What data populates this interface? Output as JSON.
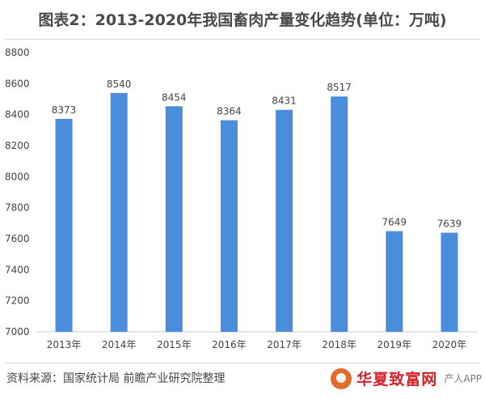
{
  "header": {
    "title": "图表2：2013-2020年我国畜肉产量变化趋势(单位：万吨)"
  },
  "footer": {
    "source": "资料来源：国家统计局 前瞻产业研究院整理",
    "brand": "华夏致富网",
    "app_text": "产人APP"
  },
  "colors": {
    "bar": "#4a8ddc",
    "axis": "#cccccc",
    "text": "#444444"
  },
  "chart_data": {
    "type": "bar",
    "title": "图表2：2013-2020年我国畜肉产量变化趋势(单位：万吨)",
    "categories": [
      "2013年",
      "2014年",
      "2015年",
      "2016年",
      "2017年",
      "2018年",
      "2019年",
      "2020年"
    ],
    "values": [
      8373,
      8540,
      8454,
      8364,
      8431,
      8517,
      7649,
      7639
    ],
    "data_labels": [
      "8373",
      "8540",
      "8454",
      "8364",
      "8431",
      "8517",
      "7649",
      "7639"
    ],
    "y_ticks": [
      "7000",
      "7200",
      "7400",
      "7600",
      "7800",
      "8000",
      "8200",
      "8400",
      "8600",
      "8800"
    ],
    "ylim": [
      7000,
      8800
    ],
    "xlabel": "",
    "ylabel": "",
    "grid": false,
    "legend": "none"
  }
}
